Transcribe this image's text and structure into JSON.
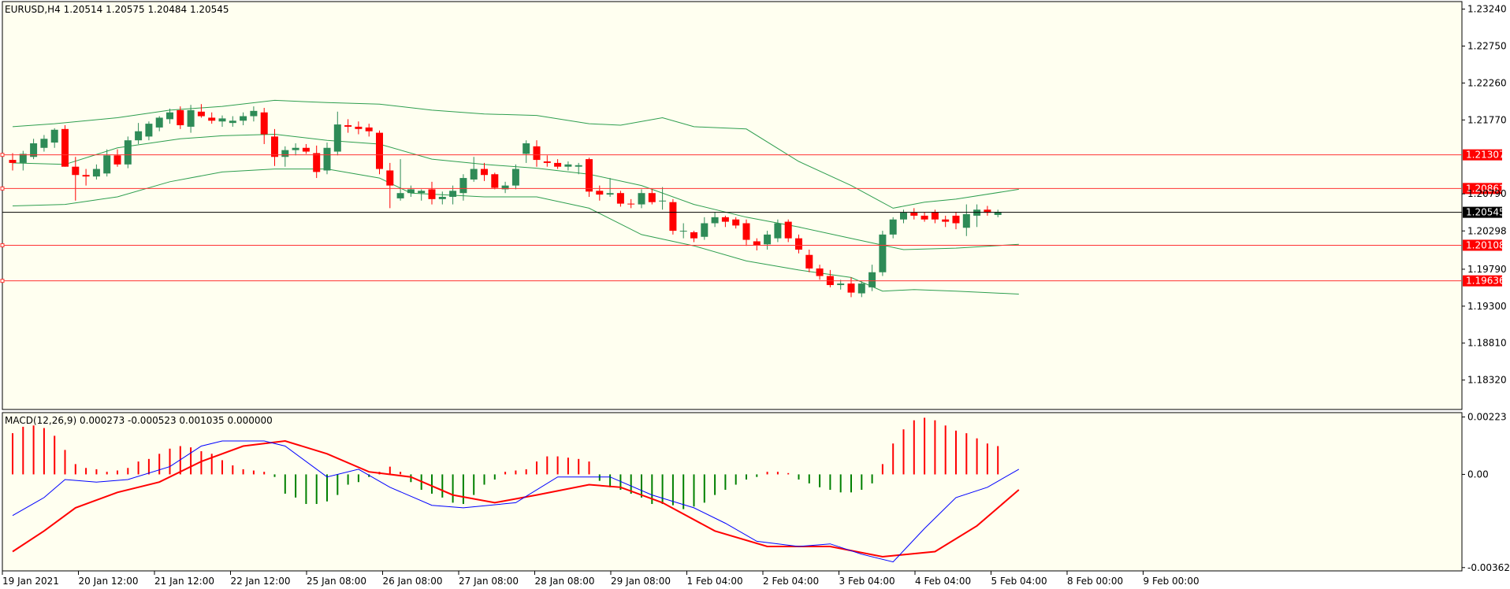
{
  "colors": {
    "background": "#fffff0",
    "frame": "#000000",
    "bull": "#2e8b57",
    "bear": "#ff0000",
    "band": "#2e9e4f",
    "level_line": "#ff3333",
    "level_label_bg": "#ff0000",
    "price_line": "#000000",
    "macd_signal": "#ff0000",
    "macd_main": "#0000ff",
    "hist_pos": "#ff0000",
    "hist_neg": "#008000"
  },
  "main_panel": {
    "title": "EURUSD,H4  1.20514 1.20575 1.20484 1.20545",
    "ymin": 1.1793,
    "ymax": 1.2334,
    "y_ticks": [
      "1.23240",
      "1.22750",
      "1.22260",
      "1.21770",
      "1.20790",
      "1.20298",
      "1.19790",
      "1.19300",
      "1.18810",
      "1.18320"
    ],
    "levels": [
      "1.21307",
      "1.20861",
      "1.20108",
      "1.19636"
    ],
    "current_price": "1.20545"
  },
  "macd_panel": {
    "title": "MACD(12,26,9) 0.000273 -0.000523 0.001035 0.000000",
    "ymin": -0.00375,
    "ymax": 0.0024,
    "y_ticks": [
      "0.00223",
      "0.00",
      "-0.003621"
    ]
  },
  "x_labels": [
    "19 Jan 2021",
    "20 Jan 12:00",
    "21 Jan 12:00",
    "22 Jan 12:00",
    "25 Jan 08:00",
    "26 Jan 08:00",
    "27 Jan 08:00",
    "28 Jan 08:00",
    "29 Jan 08:00",
    "1 Feb 04:00",
    "2 Feb 04:00",
    "3 Feb 04:00",
    "4 Feb 04:00",
    "5 Feb 04:00",
    "8 Feb 00:00",
    "9 Feb 00:00"
  ],
  "chart_data": {
    "type": "candlestick",
    "symbol": "EURUSD",
    "timeframe": "H4",
    "candles": [
      [
        1.2124,
        1.2133,
        1.211,
        1.212
      ],
      [
        1.212,
        1.2136,
        1.211,
        1.2132
      ],
      [
        1.2128,
        1.2152,
        1.2125,
        1.2146
      ],
      [
        1.214,
        1.2157,
        1.2135,
        1.2152
      ],
      [
        1.2147,
        1.2166,
        1.214,
        1.2164
      ],
      [
        1.2165,
        1.217,
        1.2115,
        1.2115
      ],
      [
        1.2115,
        1.2128,
        1.207,
        1.2104
      ],
      [
        1.2104,
        1.2112,
        1.209,
        1.2102
      ],
      [
        1.2102,
        1.2118,
        1.2098,
        1.2112
      ],
      [
        1.2106,
        1.2138,
        1.2102,
        1.213
      ],
      [
        1.213,
        1.2138,
        1.2115,
        1.2118
      ],
      [
        1.2118,
        1.2155,
        1.2113,
        1.215
      ],
      [
        1.215,
        1.2173,
        1.2145,
        1.2162
      ],
      [
        1.2155,
        1.2175,
        1.215,
        1.2172
      ],
      [
        1.2167,
        1.2182,
        1.2162,
        1.218
      ],
      [
        1.2178,
        1.2192,
        1.2172,
        1.2187
      ],
      [
        1.219,
        1.2195,
        1.2165,
        1.217
      ],
      [
        1.2168,
        1.2197,
        1.216,
        1.219
      ],
      [
        1.2188,
        1.2198,
        1.218,
        1.2182
      ],
      [
        1.218,
        1.2187,
        1.2172,
        1.2176
      ],
      [
        1.2175,
        1.2183,
        1.2168,
        1.2179
      ],
      [
        1.2173,
        1.2182,
        1.2168,
        1.2176
      ],
      [
        1.2176,
        1.2187,
        1.217,
        1.2182
      ],
      [
        1.2182,
        1.2195,
        1.2175,
        1.2189
      ],
      [
        1.2187,
        1.2193,
        1.2145,
        1.2158
      ],
      [
        1.2155,
        1.2165,
        1.2116,
        1.2128
      ],
      [
        1.2128,
        1.2142,
        1.2115,
        1.2137
      ],
      [
        1.2137,
        1.2146,
        1.213,
        1.214
      ],
      [
        1.214,
        1.2145,
        1.2132,
        1.2135
      ],
      [
        1.2133,
        1.2143,
        1.21,
        1.2108
      ],
      [
        1.211,
        1.2147,
        1.2105,
        1.214
      ],
      [
        1.2135,
        1.2188,
        1.213,
        1.2171
      ],
      [
        1.217,
        1.2178,
        1.216,
        1.2168
      ],
      [
        1.2168,
        1.2175,
        1.2158,
        1.2165
      ],
      [
        1.2167,
        1.2172,
        1.2155,
        1.2162
      ],
      [
        1.216,
        1.2163,
        1.2105,
        1.2112
      ],
      [
        1.211,
        1.212,
        1.206,
        1.209
      ],
      [
        1.2073,
        1.2125,
        1.207,
        1.208
      ],
      [
        1.208,
        1.209,
        1.2075,
        1.2085
      ],
      [
        1.208,
        1.2085,
        1.207,
        1.2083
      ],
      [
        1.2085,
        1.2095,
        1.2065,
        1.2072
      ],
      [
        1.2072,
        1.2082,
        1.2065,
        1.2075
      ],
      [
        1.2075,
        1.209,
        1.2065,
        1.2083
      ],
      [
        1.208,
        1.2105,
        1.207,
        1.21
      ],
      [
        1.2098,
        1.2128,
        1.2095,
        1.2112
      ],
      [
        1.2112,
        1.212,
        1.2096,
        1.2104
      ],
      [
        1.2105,
        1.2107,
        1.2085,
        1.2087
      ],
      [
        1.2085,
        1.2095,
        1.208,
        1.209
      ],
      [
        1.209,
        1.2118,
        1.2085,
        1.2112
      ],
      [
        1.2132,
        1.215,
        1.212,
        1.2146
      ],
      [
        1.2142,
        1.215,
        1.2115,
        1.2124
      ],
      [
        1.2122,
        1.213,
        1.2115,
        1.212
      ],
      [
        1.212,
        1.2125,
        1.2112,
        1.2115
      ],
      [
        1.2115,
        1.2122,
        1.211,
        1.2118
      ],
      [
        1.2115,
        1.212,
        1.2105,
        1.2117
      ],
      [
        1.2125,
        1.2127,
        1.2075,
        1.2082
      ],
      [
        1.2083,
        1.209,
        1.207,
        1.2078
      ],
      [
        1.2078,
        1.21,
        1.2075,
        1.208
      ],
      [
        1.208,
        1.2083,
        1.2062,
        1.2066
      ],
      [
        1.2066,
        1.2072,
        1.206,
        1.2065
      ],
      [
        1.2065,
        1.2085,
        1.206,
        1.208
      ],
      [
        1.208,
        1.2085,
        1.2065,
        1.2068
      ],
      [
        1.207,
        1.2088,
        1.2058,
        1.207
      ],
      [
        1.2068,
        1.2072,
        1.2025,
        1.203
      ],
      [
        1.203,
        1.204,
        1.202,
        1.203
      ],
      [
        1.2028,
        1.203,
        1.2015,
        1.202
      ],
      [
        1.2022,
        1.2048,
        1.2018,
        1.204
      ],
      [
        1.204,
        1.2055,
        1.2035,
        1.2048
      ],
      [
        1.2048,
        1.205,
        1.2035,
        1.2042
      ],
      [
        1.2045,
        1.2048,
        1.2033,
        1.2037
      ],
      [
        1.204,
        1.2045,
        1.201,
        1.2018
      ],
      [
        1.2016,
        1.202,
        1.2004,
        1.2011
      ],
      [
        1.2012,
        1.203,
        1.2005,
        1.2025
      ],
      [
        1.202,
        1.2045,
        1.2015,
        1.204
      ],
      [
        1.2042,
        1.2045,
        1.2015,
        1.202
      ],
      [
        1.202,
        1.2025,
        1.2,
        1.2005
      ],
      [
        1.1998,
        1.2005,
        1.1975,
        1.198
      ],
      [
        1.198,
        1.1985,
        1.1965,
        1.197
      ],
      [
        1.197,
        1.1978,
        1.1955,
        1.1958
      ],
      [
        1.1958,
        1.1965,
        1.1952,
        1.196
      ],
      [
        1.196,
        1.1968,
        1.1942,
        1.1948
      ],
      [
        1.1947,
        1.1963,
        1.1942,
        1.196
      ],
      [
        1.1955,
        1.1985,
        1.195,
        1.1975
      ],
      [
        1.1975,
        1.203,
        1.197,
        1.2025
      ],
      [
        1.2025,
        1.2048,
        1.202,
        1.2045
      ],
      [
        1.2045,
        1.2058,
        1.204,
        1.2054
      ],
      [
        1.2054,
        1.206,
        1.2045,
        1.205
      ],
      [
        1.205,
        1.2055,
        1.2042,
        1.2045
      ],
      [
        1.2055,
        1.2058,
        1.204,
        1.2045
      ],
      [
        1.2045,
        1.205,
        1.2035,
        1.2042
      ],
      [
        1.205,
        1.2055,
        1.2032,
        1.204
      ],
      [
        1.2034,
        1.2065,
        1.2023,
        1.2052
      ],
      [
        1.205,
        1.2065,
        1.2035,
        1.2058
      ],
      [
        1.2058,
        1.2063,
        1.205,
        1.2054
      ],
      [
        1.2051,
        1.2058,
        1.2048,
        1.2055
      ]
    ],
    "bands": {
      "upper": [
        [
          0,
          1.2168
        ],
        [
          4,
          1.2172
        ],
        [
          10,
          1.218
        ],
        [
          15,
          1.219
        ],
        [
          20,
          1.2195
        ],
        [
          25,
          1.2203
        ],
        [
          30,
          1.22
        ],
        [
          35,
          1.2198
        ],
        [
          40,
          1.219
        ],
        [
          45,
          1.2185
        ],
        [
          50,
          1.2183
        ],
        [
          55,
          1.2172
        ],
        [
          58,
          1.217
        ],
        [
          62,
          1.218
        ],
        [
          65,
          1.2168
        ],
        [
          70,
          1.2165
        ],
        [
          75,
          1.2122
        ],
        [
          80,
          1.209
        ],
        [
          84,
          1.206
        ],
        [
          87,
          1.2068
        ],
        [
          90,
          1.2072
        ],
        [
          96,
          1.2085
        ]
      ],
      "middle": [
        [
          0,
          1.212
        ],
        [
          5,
          1.2118
        ],
        [
          10,
          1.214
        ],
        [
          16,
          1.2152
        ],
        [
          20,
          1.2156
        ],
        [
          25,
          1.2158
        ],
        [
          30,
          1.215
        ],
        [
          35,
          1.2145
        ],
        [
          40,
          1.2125
        ],
        [
          45,
          1.2118
        ],
        [
          50,
          1.2113
        ],
        [
          55,
          1.2105
        ],
        [
          60,
          1.209
        ],
        [
          65,
          1.2065
        ],
        [
          70,
          1.2048
        ],
        [
          75,
          1.2035
        ],
        [
          80,
          1.202
        ],
        [
          85,
          1.2005
        ],
        [
          90,
          1.2007
        ],
        [
          96,
          1.2012
        ]
      ],
      "lower": [
        [
          0,
          1.2063
        ],
        [
          5,
          1.2065
        ],
        [
          10,
          1.2075
        ],
        [
          15,
          1.2095
        ],
        [
          20,
          1.2108
        ],
        [
          25,
          1.2112
        ],
        [
          30,
          1.2112
        ],
        [
          35,
          1.21
        ],
        [
          38,
          1.208
        ],
        [
          45,
          1.2075
        ],
        [
          50,
          1.2075
        ],
        [
          55,
          1.206
        ],
        [
          60,
          1.2025
        ],
        [
          65,
          1.201
        ],
        [
          70,
          1.199
        ],
        [
          75,
          1.1978
        ],
        [
          80,
          1.1968
        ],
        [
          83,
          1.195
        ],
        [
          86,
          1.1952
        ],
        [
          90,
          1.195
        ],
        [
          96,
          1.1946
        ]
      ]
    },
    "macd_hist": [
      0.0016,
      0.00185,
      0.0019,
      0.0018,
      0.0015,
      0.00095,
      0.0004,
      0.00025,
      0.0002,
      0.0001,
      0.00015,
      0.00025,
      0.0005,
      0.0006,
      0.0008,
      0.001,
      0.0011,
      0.00105,
      0.0009,
      0.0008,
      0.00055,
      0.00035,
      0.0002,
      0.00015,
      0.0001,
      -0.0001,
      -0.00075,
      -0.0009,
      -0.00115,
      -0.00115,
      -0.00105,
      -0.0008,
      -0.0004,
      -0.0003,
      -0.0001,
      0.0001,
      0.0003,
      0.0001,
      -0.0003,
      -0.0006,
      -0.00075,
      -0.0009,
      -0.0011,
      -0.00115,
      -0.0008,
      -0.0004,
      -0.0002,
      0.0001,
      0.00015,
      0.0002,
      0.0005,
      0.0007,
      0.0007,
      0.00065,
      0.0006,
      0.0005,
      -0.00025,
      -0.0005,
      -0.0006,
      -0.00075,
      -0.0009,
      -0.00115,
      -0.00115,
      -0.0012,
      -0.00135,
      -0.00125,
      -0.0011,
      -0.0008,
      -0.0006,
      -0.0004,
      -0.0002,
      -0.0001,
      0.0001,
      0.0001,
      5e-05,
      -0.0002,
      -0.00035,
      -0.0005,
      -0.0006,
      -0.0007,
      -0.0007,
      -0.0006,
      -0.00035,
      0.0004,
      0.0012,
      0.00175,
      0.0021,
      0.0022,
      0.0021,
      0.0019,
      0.0017,
      0.0016,
      0.0014,
      0.0012,
      0.0011
    ],
    "macd_main": [
      [
        0,
        -0.0016
      ],
      [
        3,
        -0.0009
      ],
      [
        5,
        -0.0002
      ],
      [
        8,
        -0.0003
      ],
      [
        11,
        -0.0002
      ],
      [
        15,
        0.0003
      ],
      [
        18,
        0.0011
      ],
      [
        20,
        0.0013
      ],
      [
        24,
        0.0013
      ],
      [
        26,
        0.0011
      ],
      [
        30,
        -0.0001
      ],
      [
        33,
        0.0002
      ],
      [
        36,
        -0.0005
      ],
      [
        40,
        -0.0012
      ],
      [
        43,
        -0.0013
      ],
      [
        48,
        -0.0011
      ],
      [
        52,
        -0.0001
      ],
      [
        57,
        -0.0001
      ],
      [
        61,
        -0.0008
      ],
      [
        65,
        -0.0013
      ],
      [
        68,
        -0.0019
      ],
      [
        71,
        -0.0026
      ],
      [
        75,
        -0.0028
      ],
      [
        78,
        -0.0027
      ],
      [
        81,
        -0.0031
      ],
      [
        84,
        -0.0034
      ],
      [
        87,
        -0.0021
      ],
      [
        90,
        -0.0009
      ],
      [
        93,
        -0.0005
      ],
      [
        96,
        0.0002
      ]
    ],
    "macd_signal": [
      [
        0,
        -0.003
      ],
      [
        3,
        -0.0022
      ],
      [
        6,
        -0.0013
      ],
      [
        10,
        -0.0007
      ],
      [
        14,
        -0.0003
      ],
      [
        18,
        0.0005
      ],
      [
        22,
        0.0011
      ],
      [
        26,
        0.0013
      ],
      [
        30,
        0.0008
      ],
      [
        34,
        0.0001
      ],
      [
        38,
        -0.0001
      ],
      [
        42,
        -0.0008
      ],
      [
        46,
        -0.0011
      ],
      [
        50,
        -0.0008
      ],
      [
        55,
        -0.0004
      ],
      [
        58,
        -0.0005
      ],
      [
        62,
        -0.0011
      ],
      [
        67,
        -0.0022
      ],
      [
        72,
        -0.0028
      ],
      [
        78,
        -0.0028
      ],
      [
        83,
        -0.0032
      ],
      [
        88,
        -0.003
      ],
      [
        92,
        -0.002
      ],
      [
        96,
        -0.0006
      ]
    ]
  }
}
